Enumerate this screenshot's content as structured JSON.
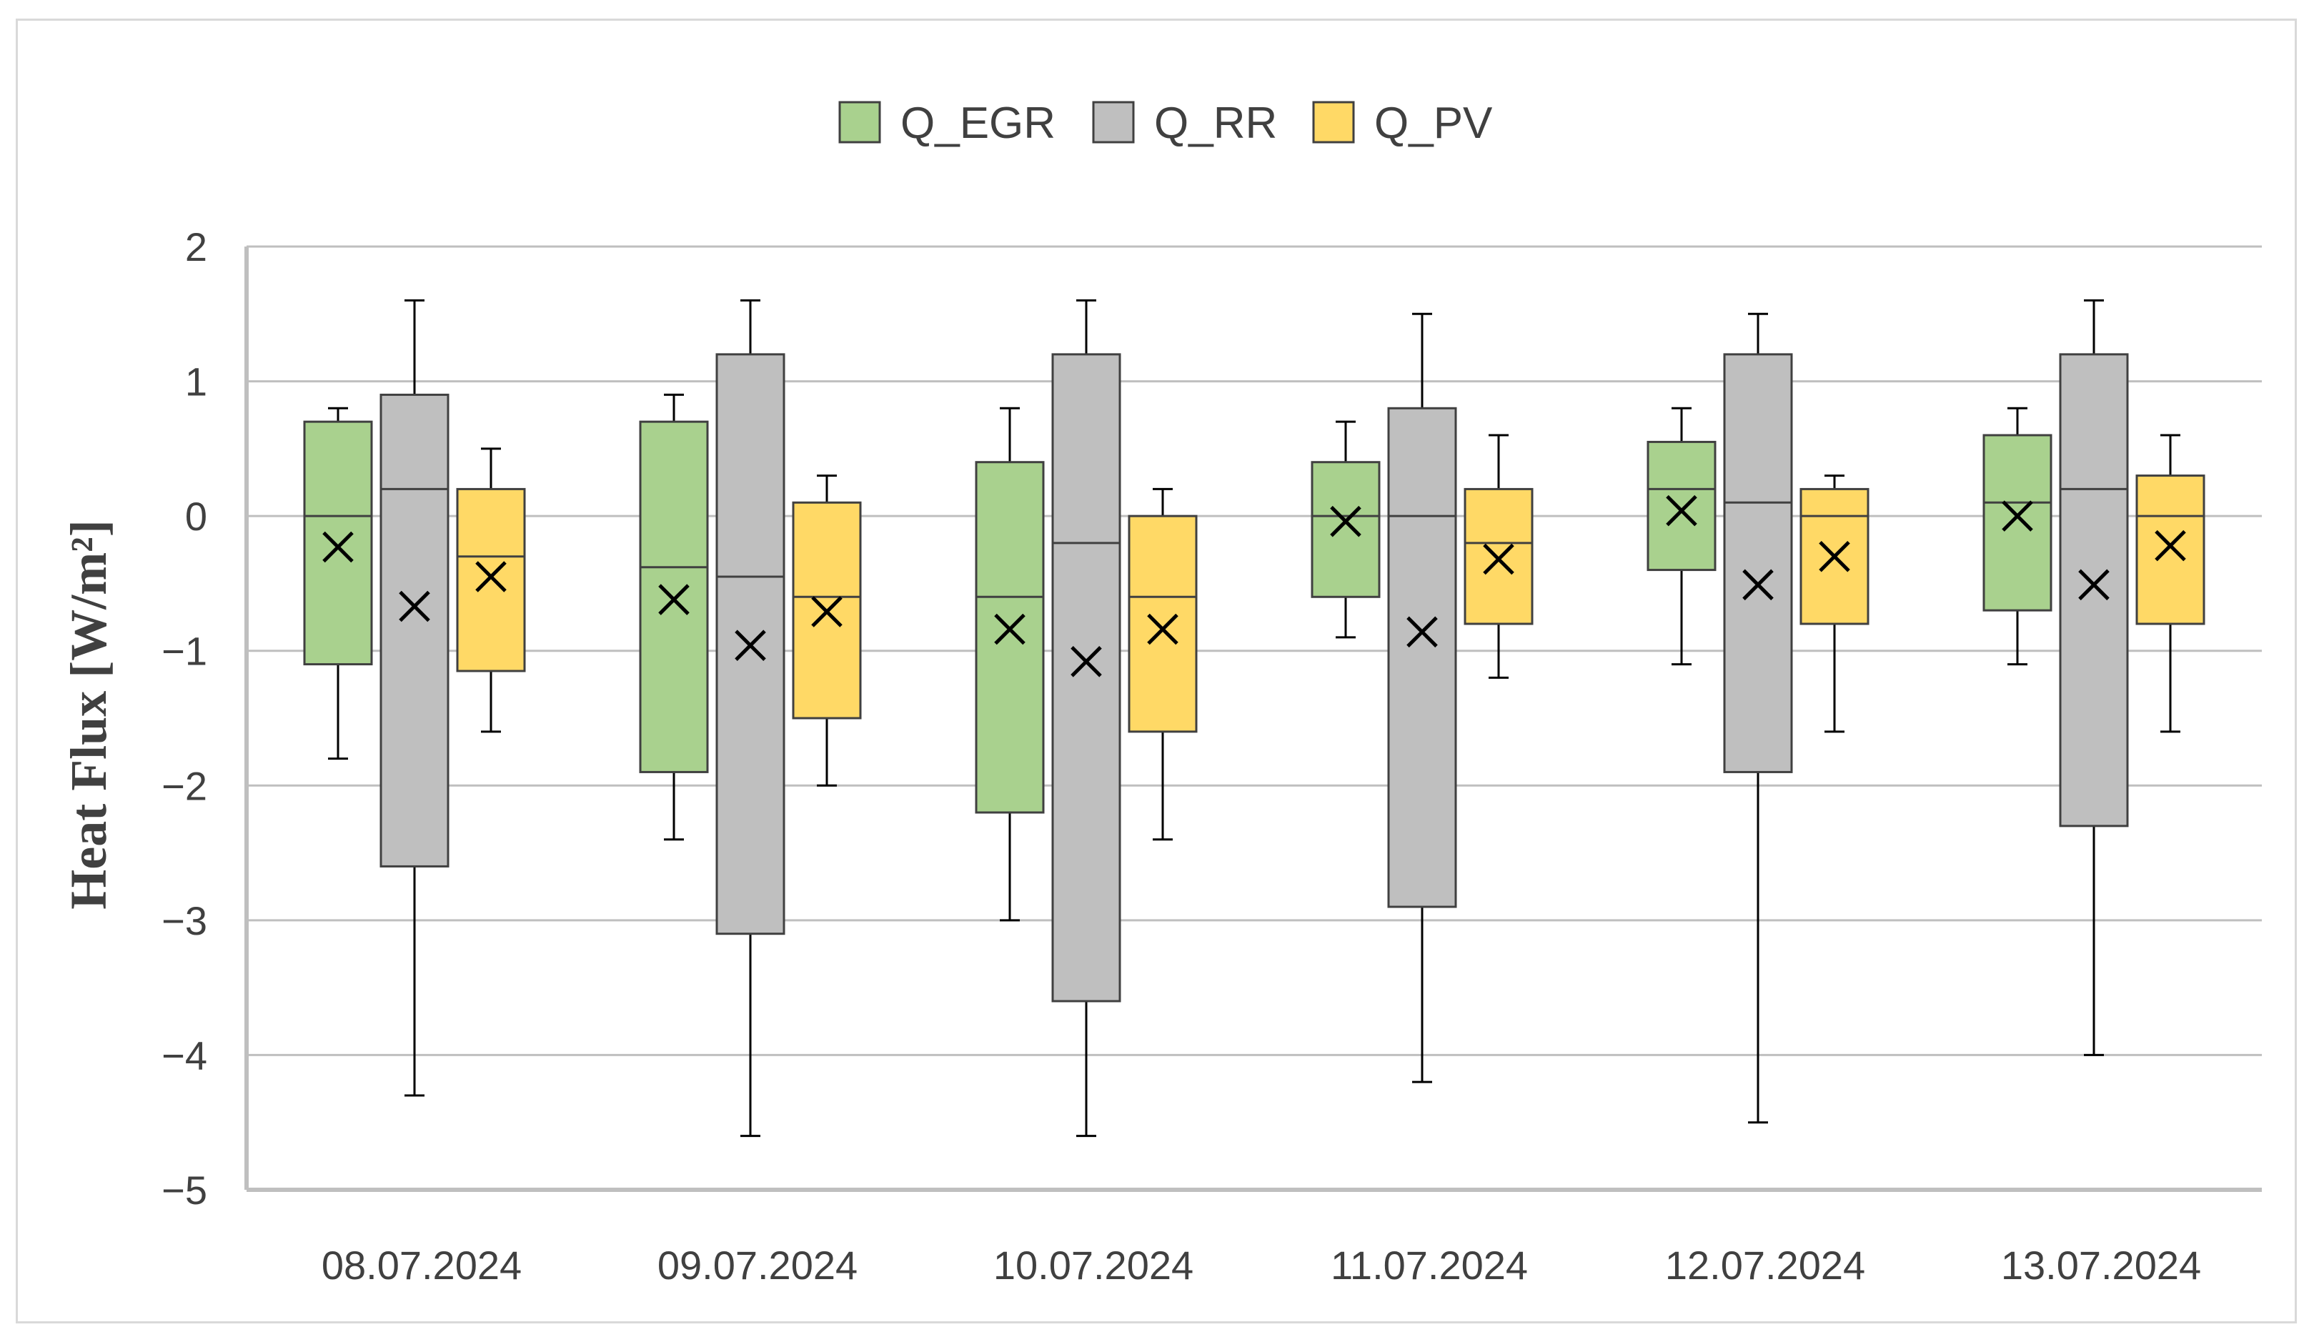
{
  "chart_data": {
    "type": "box",
    "title": "",
    "xlabel": "",
    "ylabel": "Heat Flux [W/m²]",
    "ylim": [
      -5,
      2
    ],
    "yticks": [
      2,
      1,
      0,
      -1,
      -2,
      -3,
      -4,
      -5
    ],
    "ytick_labels": [
      "2",
      "1",
      "0",
      "−1",
      "−2",
      "−3",
      "−4",
      "−5"
    ],
    "grid": true,
    "legend_position": "top-center",
    "categories": [
      "08.07.2024",
      "09.07.2024",
      "10.07.2024",
      "11.07.2024",
      "12.07.2024",
      "13.07.2024"
    ],
    "series": [
      {
        "name": "Q_EGR",
        "color": "#a9d18e",
        "boxes": [
          {
            "min": -1.8,
            "q1": -1.1,
            "median": 0.0,
            "q3": 0.7,
            "max": 0.8,
            "mean": -0.23
          },
          {
            "min": -2.4,
            "q1": -1.9,
            "median": -0.38,
            "q3": 0.7,
            "max": 0.9,
            "mean": -0.62
          },
          {
            "min": -3.0,
            "q1": -2.2,
            "median": -0.6,
            "q3": 0.4,
            "max": 0.8,
            "mean": -0.84
          },
          {
            "min": -0.9,
            "q1": -0.6,
            "median": 0.0,
            "q3": 0.4,
            "max": 0.7,
            "mean": -0.04
          },
          {
            "min": -1.1,
            "q1": -0.4,
            "median": 0.2,
            "q3": 0.55,
            "max": 0.8,
            "mean": 0.04
          },
          {
            "min": -1.1,
            "q1": -0.7,
            "median": 0.1,
            "q3": 0.6,
            "max": 0.8,
            "mean": 0.0
          }
        ]
      },
      {
        "name": "Q_RR",
        "color": "#bfbfbf",
        "boxes": [
          {
            "min": -4.3,
            "q1": -2.6,
            "median": 0.2,
            "q3": 0.9,
            "max": 1.6,
            "mean": -0.67
          },
          {
            "min": -4.6,
            "q1": -3.1,
            "median": -0.45,
            "q3": 1.2,
            "max": 1.6,
            "mean": -0.96
          },
          {
            "min": -4.6,
            "q1": -3.6,
            "median": -0.2,
            "q3": 1.2,
            "max": 1.6,
            "mean": -1.08
          },
          {
            "min": -4.2,
            "q1": -2.9,
            "median": 0.0,
            "q3": 0.8,
            "max": 1.5,
            "mean": -0.86
          },
          {
            "min": -4.5,
            "q1": -1.9,
            "median": 0.1,
            "q3": 1.2,
            "max": 1.5,
            "mean": -0.51
          },
          {
            "min": -4.0,
            "q1": -2.3,
            "median": 0.2,
            "q3": 1.2,
            "max": 1.6,
            "mean": -0.51
          }
        ]
      },
      {
        "name": "Q_PV",
        "color": "#ffd966",
        "boxes": [
          {
            "min": -1.6,
            "q1": -1.15,
            "median": -0.3,
            "q3": 0.2,
            "max": 0.5,
            "mean": -0.45
          },
          {
            "min": -2.0,
            "q1": -1.5,
            "median": -0.6,
            "q3": 0.1,
            "max": 0.3,
            "mean": -0.71
          },
          {
            "min": -2.4,
            "q1": -1.6,
            "median": -0.6,
            "q3": 0.0,
            "max": 0.2,
            "mean": -0.84
          },
          {
            "min": -1.2,
            "q1": -0.8,
            "median": -0.2,
            "q3": 0.2,
            "max": 0.6,
            "mean": -0.32
          },
          {
            "min": -1.6,
            "q1": -0.8,
            "median": 0.0,
            "q3": 0.2,
            "max": 0.3,
            "mean": -0.3
          },
          {
            "min": -1.6,
            "q1": -0.8,
            "median": 0.0,
            "q3": 0.3,
            "max": 0.6,
            "mean": -0.22
          }
        ]
      }
    ]
  }
}
